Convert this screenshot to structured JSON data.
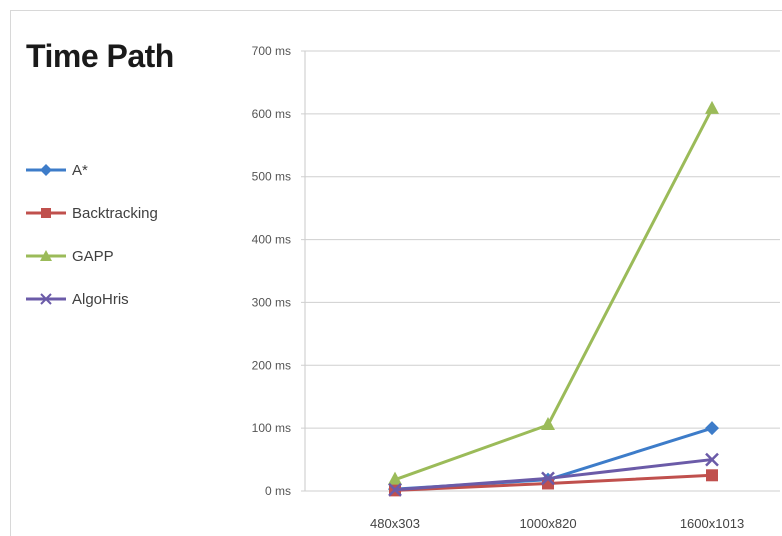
{
  "chart_data": {
    "type": "line",
    "title": "Time Path",
    "categories": [
      "480x303",
      "1000x820",
      "1600x1013"
    ],
    "y_ticks": [
      "0 ms",
      "100 ms",
      "200 ms",
      "300 ms",
      "400 ms",
      "500 ms",
      "600 ms",
      "700 ms"
    ],
    "ylim": [
      0,
      700
    ],
    "grid": true,
    "legend_position": "left",
    "series": [
      {
        "name": "A*",
        "color": "#3d7cc9",
        "marker": "diamond",
        "values": [
          3,
          18,
          100
        ]
      },
      {
        "name": "Backtracking",
        "color": "#c0504d",
        "marker": "square",
        "values": [
          1,
          12,
          25
        ]
      },
      {
        "name": "GAPP",
        "color": "#9bbb59",
        "marker": "triangle",
        "values": [
          18,
          105,
          608
        ]
      },
      {
        "name": "AlgoHris",
        "color": "#6b5ba8",
        "marker": "x",
        "values": [
          2,
          20,
          50
        ]
      }
    ]
  }
}
